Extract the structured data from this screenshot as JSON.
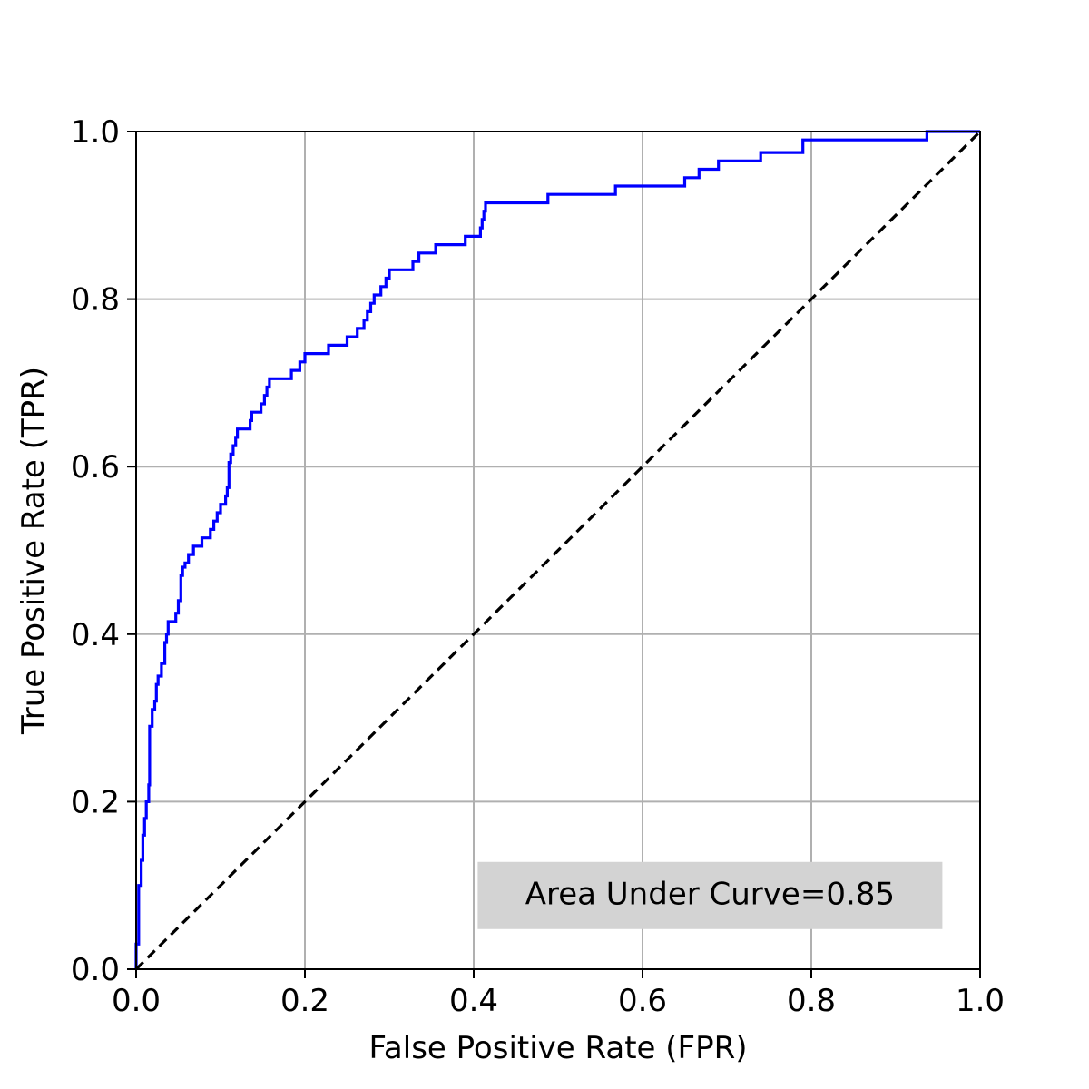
{
  "chart_data": {
    "type": "line",
    "title": "",
    "xlabel": "False Positive Rate (FPR)",
    "ylabel": "True Positive Rate (TPR)",
    "xlim": [
      0.0,
      1.0
    ],
    "ylim": [
      0.0,
      1.0
    ],
    "x_ticks": [
      0.0,
      0.2,
      0.4,
      0.6,
      0.8,
      1.0
    ],
    "y_ticks": [
      0.0,
      0.2,
      0.4,
      0.6,
      0.8,
      1.0
    ],
    "x_tick_labels": [
      "0.0",
      "0.2",
      "0.4",
      "0.6",
      "0.8",
      "1.0"
    ],
    "y_tick_labels": [
      "0.0",
      "0.2",
      "0.4",
      "0.6",
      "0.8",
      "1.0"
    ],
    "grid": true,
    "legend": null,
    "series": [
      {
        "kind": "roc-curve",
        "color": "#0000ff",
        "line_style": "solid",
        "step": true,
        "points": [
          [
            0.0,
            0.0
          ],
          [
            0.0,
            0.03
          ],
          [
            0.003,
            0.03
          ],
          [
            0.003,
            0.1
          ],
          [
            0.006,
            0.1
          ],
          [
            0.006,
            0.13
          ],
          [
            0.008,
            0.13
          ],
          [
            0.008,
            0.16
          ],
          [
            0.01,
            0.16
          ],
          [
            0.01,
            0.18
          ],
          [
            0.012,
            0.18
          ],
          [
            0.012,
            0.2
          ],
          [
            0.015,
            0.2
          ],
          [
            0.015,
            0.22
          ],
          [
            0.016,
            0.22
          ],
          [
            0.016,
            0.29
          ],
          [
            0.019,
            0.29
          ],
          [
            0.019,
            0.31
          ],
          [
            0.022,
            0.31
          ],
          [
            0.022,
            0.32
          ],
          [
            0.024,
            0.32
          ],
          [
            0.024,
            0.34
          ],
          [
            0.026,
            0.34
          ],
          [
            0.026,
            0.35
          ],
          [
            0.03,
            0.35
          ],
          [
            0.03,
            0.365
          ],
          [
            0.034,
            0.365
          ],
          [
            0.034,
            0.39
          ],
          [
            0.036,
            0.39
          ],
          [
            0.036,
            0.4
          ],
          [
            0.038,
            0.4
          ],
          [
            0.038,
            0.415
          ],
          [
            0.047,
            0.415
          ],
          [
            0.047,
            0.425
          ],
          [
            0.05,
            0.425
          ],
          [
            0.05,
            0.44
          ],
          [
            0.053,
            0.44
          ],
          [
            0.053,
            0.47
          ],
          [
            0.055,
            0.47
          ],
          [
            0.055,
            0.48
          ],
          [
            0.058,
            0.48
          ],
          [
            0.058,
            0.485
          ],
          [
            0.062,
            0.485
          ],
          [
            0.062,
            0.495
          ],
          [
            0.068,
            0.495
          ],
          [
            0.068,
            0.505
          ],
          [
            0.078,
            0.505
          ],
          [
            0.078,
            0.515
          ],
          [
            0.088,
            0.515
          ],
          [
            0.088,
            0.525
          ],
          [
            0.092,
            0.525
          ],
          [
            0.092,
            0.535
          ],
          [
            0.096,
            0.535
          ],
          [
            0.096,
            0.545
          ],
          [
            0.1,
            0.545
          ],
          [
            0.1,
            0.555
          ],
          [
            0.106,
            0.555
          ],
          [
            0.106,
            0.565
          ],
          [
            0.108,
            0.565
          ],
          [
            0.108,
            0.575
          ],
          [
            0.11,
            0.575
          ],
          [
            0.11,
            0.605
          ],
          [
            0.112,
            0.605
          ],
          [
            0.112,
            0.615
          ],
          [
            0.115,
            0.615
          ],
          [
            0.115,
            0.625
          ],
          [
            0.118,
            0.625
          ],
          [
            0.118,
            0.635
          ],
          [
            0.12,
            0.635
          ],
          [
            0.12,
            0.645
          ],
          [
            0.135,
            0.645
          ],
          [
            0.135,
            0.655
          ],
          [
            0.137,
            0.655
          ],
          [
            0.137,
            0.665
          ],
          [
            0.148,
            0.665
          ],
          [
            0.148,
            0.675
          ],
          [
            0.152,
            0.675
          ],
          [
            0.152,
            0.685
          ],
          [
            0.155,
            0.685
          ],
          [
            0.155,
            0.695
          ],
          [
            0.158,
            0.695
          ],
          [
            0.158,
            0.705
          ],
          [
            0.184,
            0.705
          ],
          [
            0.184,
            0.715
          ],
          [
            0.194,
            0.715
          ],
          [
            0.194,
            0.725
          ],
          [
            0.2,
            0.725
          ],
          [
            0.2,
            0.735
          ],
          [
            0.228,
            0.735
          ],
          [
            0.228,
            0.745
          ],
          [
            0.25,
            0.745
          ],
          [
            0.25,
            0.755
          ],
          [
            0.262,
            0.755
          ],
          [
            0.262,
            0.765
          ],
          [
            0.27,
            0.765
          ],
          [
            0.27,
            0.775
          ],
          [
            0.274,
            0.775
          ],
          [
            0.274,
            0.785
          ],
          [
            0.278,
            0.785
          ],
          [
            0.278,
            0.795
          ],
          [
            0.282,
            0.795
          ],
          [
            0.282,
            0.805
          ],
          [
            0.29,
            0.805
          ],
          [
            0.29,
            0.815
          ],
          [
            0.296,
            0.815
          ],
          [
            0.296,
            0.825
          ],
          [
            0.3,
            0.825
          ],
          [
            0.3,
            0.835
          ],
          [
            0.328,
            0.835
          ],
          [
            0.328,
            0.845
          ],
          [
            0.335,
            0.845
          ],
          [
            0.335,
            0.855
          ],
          [
            0.355,
            0.855
          ],
          [
            0.355,
            0.865
          ],
          [
            0.39,
            0.865
          ],
          [
            0.39,
            0.875
          ],
          [
            0.408,
            0.875
          ],
          [
            0.408,
            0.885
          ],
          [
            0.41,
            0.885
          ],
          [
            0.41,
            0.895
          ],
          [
            0.412,
            0.895
          ],
          [
            0.412,
            0.905
          ],
          [
            0.414,
            0.905
          ],
          [
            0.414,
            0.915
          ],
          [
            0.488,
            0.915
          ],
          [
            0.488,
            0.925
          ],
          [
            0.568,
            0.925
          ],
          [
            0.568,
            0.935
          ],
          [
            0.65,
            0.935
          ],
          [
            0.65,
            0.945
          ],
          [
            0.667,
            0.945
          ],
          [
            0.667,
            0.955
          ],
          [
            0.69,
            0.955
          ],
          [
            0.69,
            0.965
          ],
          [
            0.74,
            0.965
          ],
          [
            0.74,
            0.975
          ],
          [
            0.79,
            0.975
          ],
          [
            0.79,
            0.99
          ],
          [
            0.937,
            0.99
          ],
          [
            0.937,
            1.0
          ],
          [
            1.0,
            1.0
          ]
        ]
      },
      {
        "kind": "reference-diagonal",
        "color": "#000000",
        "line_style": "dashed",
        "points": [
          [
            0.0,
            0.0
          ],
          [
            1.0,
            1.0
          ]
        ]
      }
    ],
    "annotations": [
      {
        "text": "Area Under Curve=0.85",
        "x": 0.68,
        "y": 0.088,
        "box_color": "#d3d3d3"
      }
    ]
  }
}
